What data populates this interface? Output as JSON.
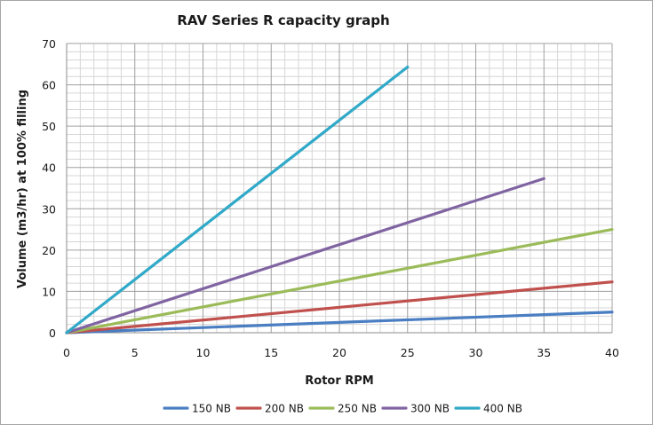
{
  "chart_data": {
    "type": "line",
    "title": "RAV Series R capacity graph",
    "xlabel": "Rotor RPM",
    "ylabel": "Volume (m3/hr) at 100% filling",
    "xlim": [
      0,
      40
    ],
    "ylim": [
      0,
      70
    ],
    "xticks": [
      "0",
      "5",
      "10",
      "15",
      "20",
      "25",
      "30",
      "35",
      "40"
    ],
    "yticks": [
      "0",
      "10",
      "20",
      "30",
      "40",
      "50",
      "60",
      "70"
    ],
    "grid": true,
    "legend_position": "bottom",
    "series": [
      {
        "name": "150 NB",
        "color": "#4a7ec2",
        "x": [
          0,
          40
        ],
        "y": [
          0,
          5.0
        ]
      },
      {
        "name": "200 NB",
        "color": "#c0504d",
        "x": [
          0,
          40
        ],
        "y": [
          0,
          12.3
        ]
      },
      {
        "name": "250 NB",
        "color": "#9bbb59",
        "x": [
          0,
          40
        ],
        "y": [
          0,
          25.0
        ]
      },
      {
        "name": "300 NB",
        "color": "#8064a2",
        "x": [
          0,
          35
        ],
        "y": [
          0,
          37.3
        ]
      },
      {
        "name": "400 NB",
        "color": "#31a9c8",
        "x": [
          0,
          25
        ],
        "y": [
          0,
          64.3
        ]
      }
    ]
  }
}
